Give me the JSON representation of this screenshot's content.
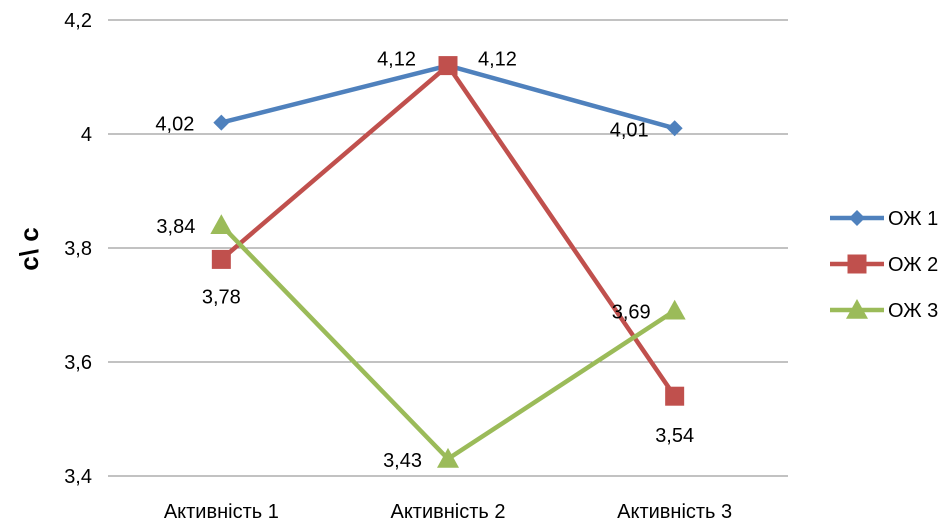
{
  "chart_data": {
    "type": "line",
    "title": "",
    "xlabel": "",
    "ylabel": "с\\ с",
    "categories": [
      "Активність 1",
      "Активність 2",
      "Активність 3"
    ],
    "ylim": [
      3.4,
      4.2
    ],
    "yticks": [
      "3,4",
      "3,6",
      "3,8",
      "4",
      "4,2"
    ],
    "grid": true,
    "legend_position": "right",
    "series": [
      {
        "name": "ОЖ 1",
        "values": [
          4.02,
          4.12,
          4.01
        ],
        "labels": [
          "4,02",
          "4,12",
          "4,01"
        ],
        "color": "#4F81BD",
        "marker": "diamond"
      },
      {
        "name": "ОЖ 2",
        "values": [
          3.78,
          4.12,
          3.54
        ],
        "labels": [
          "3,78",
          "4,12",
          "3,54"
        ],
        "color": "#C0504D",
        "marker": "square"
      },
      {
        "name": "ОЖ 3",
        "values": [
          3.84,
          3.43,
          3.69
        ],
        "labels": [
          "3,84",
          "3,43",
          "3,69"
        ],
        "color": "#9BBB59",
        "marker": "triangle"
      }
    ]
  }
}
